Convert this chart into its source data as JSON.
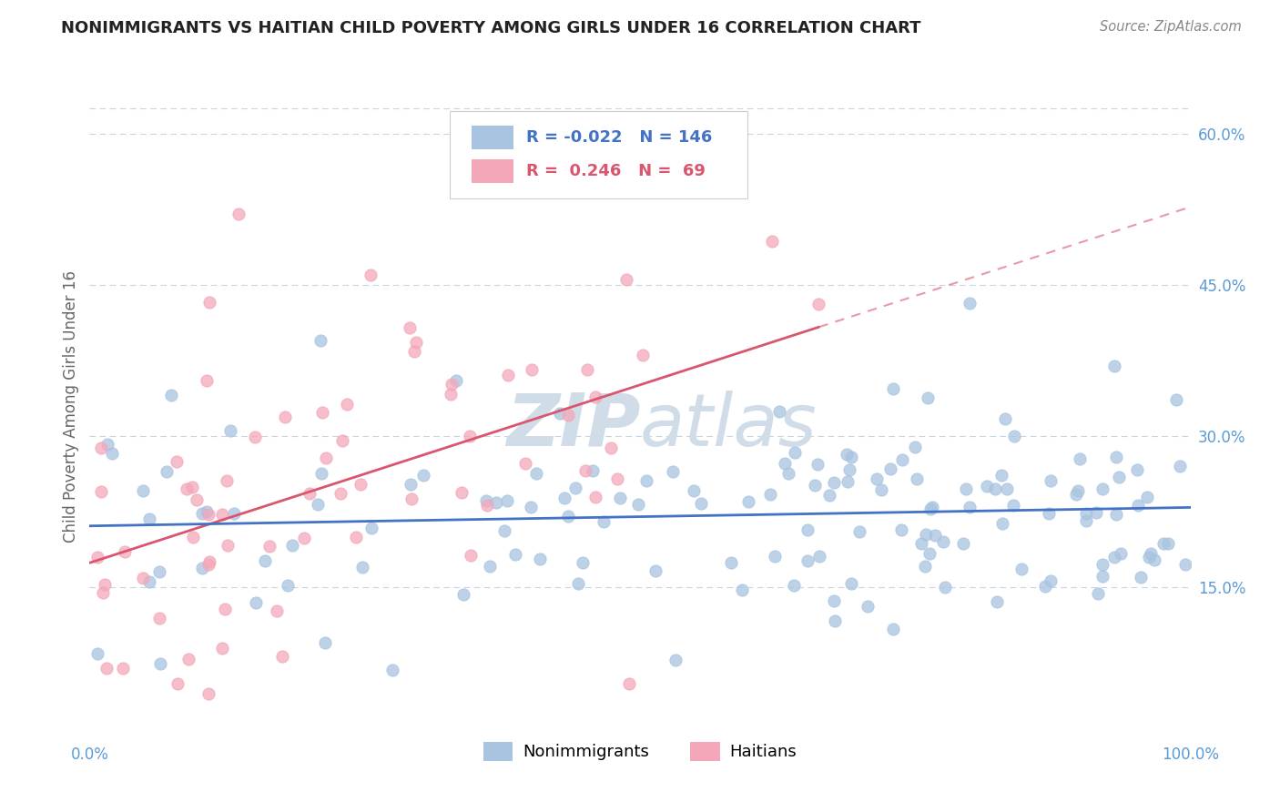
{
  "title": "NONIMMIGRANTS VS HAITIAN CHILD POVERTY AMONG GIRLS UNDER 16 CORRELATION CHART",
  "source": "Source: ZipAtlas.com",
  "ylabel": "Child Poverty Among Girls Under 16",
  "xlim": [
    0.0,
    1.0
  ],
  "ylim": [
    0.0,
    0.66
  ],
  "xtick_labels": [
    "0.0%",
    "100.0%"
  ],
  "ytick_labels": [
    "15.0%",
    "30.0%",
    "45.0%",
    "60.0%"
  ],
  "ytick_values": [
    0.15,
    0.3,
    0.45,
    0.6
  ],
  "legend_nonimm_label": "Nonimmigrants",
  "legend_haitian_label": "Haitians",
  "nonimm_color": "#a8c4e0",
  "haitian_color": "#f4a7b9",
  "nonimm_line_color": "#4472c4",
  "haitian_line_color": "#d9566e",
  "grid_color": "#c8d4e0",
  "watermark_color": "#d0dce8",
  "background_color": "#ffffff",
  "nonimm_seed": 42,
  "haitian_seed": 7
}
